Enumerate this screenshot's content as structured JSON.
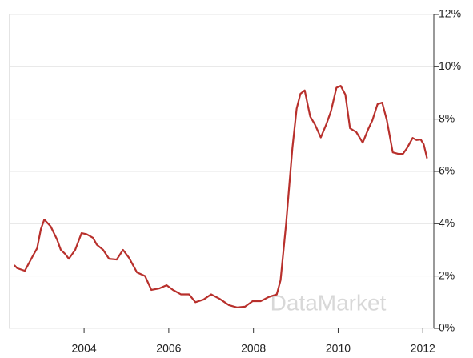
{
  "chart_data": {
    "type": "line",
    "watermark": "DataMarket",
    "x": [
      2002.35,
      2002.42,
      2002.6,
      2002.8,
      2002.89,
      2002.98,
      2003.06,
      2003.21,
      2003.36,
      2003.45,
      2003.55,
      2003.64,
      2003.79,
      2003.94,
      2004.06,
      2004.21,
      2004.3,
      2004.45,
      2004.59,
      2004.77,
      2004.92,
      2005.06,
      2005.25,
      2005.44,
      2005.59,
      2005.78,
      2005.95,
      2006.1,
      2006.29,
      2006.48,
      2006.63,
      2006.82,
      2007.0,
      2007.2,
      2007.42,
      2007.61,
      2007.8,
      2007.98,
      2008.17,
      2008.36,
      2008.55,
      2008.64,
      2008.77,
      2008.92,
      2009.02,
      2009.11,
      2009.21,
      2009.34,
      2009.45,
      2009.59,
      2009.72,
      2009.83,
      2009.96,
      2010.06,
      2010.17,
      2010.28,
      2010.43,
      2010.58,
      2010.72,
      2010.81,
      2010.93,
      2011.04,
      2011.15,
      2011.29,
      2011.42,
      2011.53,
      2011.63,
      2011.76,
      2011.85,
      2011.95,
      2012.02,
      2012.1
    ],
    "series": [
      {
        "color": "#b8302c",
        "values": [
          2.42,
          2.3,
          2.2,
          2.8,
          3.06,
          3.8,
          4.16,
          3.9,
          3.4,
          3.0,
          2.85,
          2.66,
          3.0,
          3.64,
          3.6,
          3.46,
          3.2,
          3.0,
          2.66,
          2.63,
          3.0,
          2.7,
          2.14,
          2.0,
          1.47,
          1.53,
          1.65,
          1.47,
          1.3,
          1.3,
          1.0,
          1.1,
          1.3,
          1.13,
          0.89,
          0.8,
          0.83,
          1.04,
          1.04,
          1.2,
          1.3,
          1.84,
          3.98,
          6.9,
          8.4,
          8.97,
          9.1,
          8.1,
          7.8,
          7.3,
          7.8,
          8.3,
          9.2,
          9.27,
          8.94,
          7.65,
          7.5,
          7.1,
          7.65,
          7.96,
          8.57,
          8.63,
          7.96,
          6.73,
          6.67,
          6.67,
          6.9,
          7.28,
          7.2,
          7.22,
          7.04,
          6.5
        ]
      }
    ],
    "xlim": [
      2002.24,
      2012.26
    ],
    "xticks": [
      2004,
      2006,
      2008,
      2010,
      2012
    ],
    "ylim": [
      0,
      12
    ],
    "yticks": [
      {
        "value": 0,
        "label": "0%"
      },
      {
        "value": 2,
        "label": "2%"
      },
      {
        "value": 4,
        "label": "4%"
      },
      {
        "value": 6,
        "label": "6%"
      },
      {
        "value": 8,
        "label": "8%"
      },
      {
        "value": 10,
        "label": "10%"
      },
      {
        "value": 12,
        "label": "12%"
      }
    ],
    "grid": true,
    "y_axis_side": "right"
  }
}
